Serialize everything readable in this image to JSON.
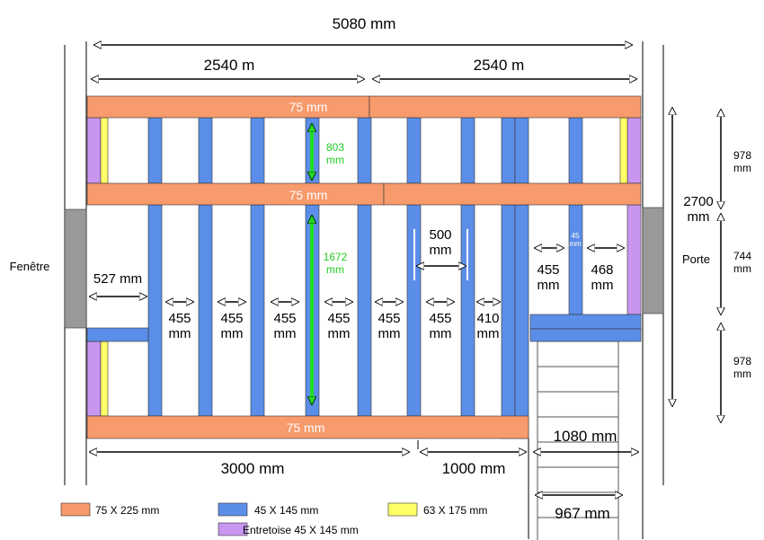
{
  "dimensions": {
    "overall": "5080 mm",
    "left_half": "2540 m",
    "right_half": "2540 m",
    "bottom_left": "3000 mm",
    "bottom_middle": "1000 mm",
    "stair_width": "1080 mm",
    "stair_inner": "967 mm",
    "side_total": "2700 mm",
    "side_top": "978 mm",
    "side_middle": "744 mm",
    "side_bottom": "978 mm"
  },
  "beams": [
    "75 mm",
    "75 mm",
    "75 mm"
  ],
  "heights": [
    "803 mm",
    "1672 mm"
  ],
  "openings": {
    "window": "Fenêtre",
    "door": "Porte"
  },
  "spacings": [
    "527 mm",
    "455 mm",
    "455 mm",
    "455 mm",
    "455 mm",
    "455 mm",
    "455 mm",
    "410 mm",
    "500 mm",
    "45 mm",
    "455 mm",
    "468 mm"
  ],
  "legend": [
    {
      "label": "75 X 225 mm",
      "color": "#f79a6c"
    },
    {
      "label": "45 X 145 mm",
      "color": "#5b8ee8"
    },
    {
      "label": "63 X 175 mm",
      "color": "#ffff66"
    },
    {
      "label": "Entretoise 45 X 145 mm",
      "color": "#c896f0"
    }
  ]
}
